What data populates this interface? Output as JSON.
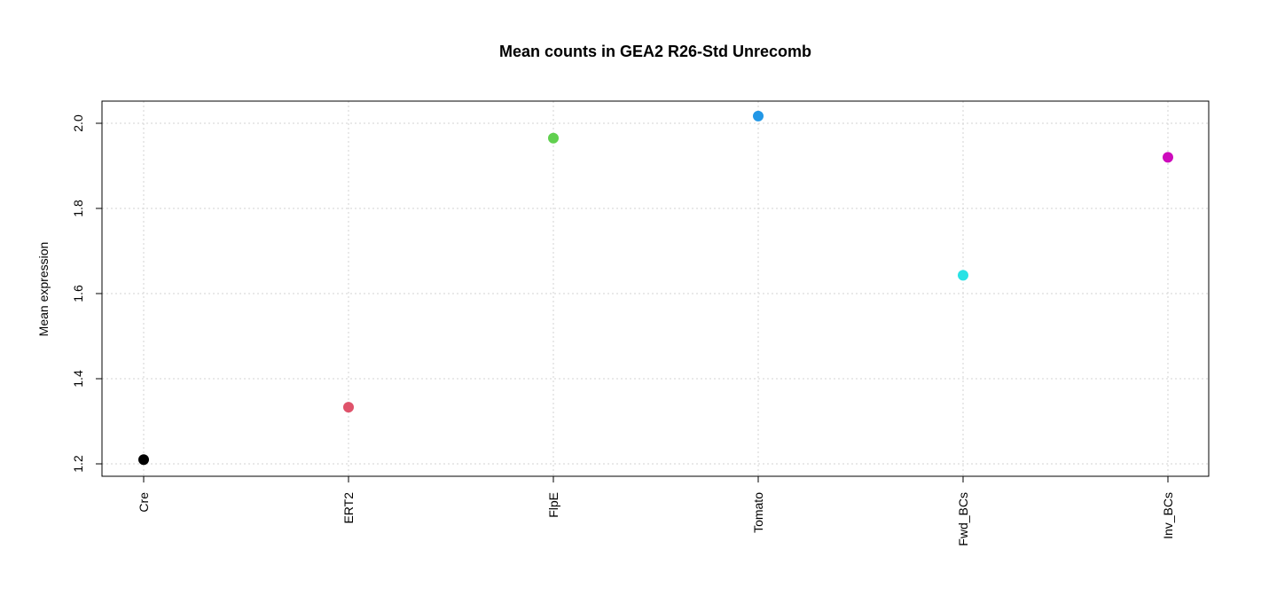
{
  "chart_data": {
    "type": "scatter",
    "title": "Mean counts in GEA2 R26-Std Unrecomb",
    "xlabel": "",
    "ylabel": "Mean expression",
    "categories": [
      "Cre",
      "ERT2",
      "FlpE",
      "Tomato",
      "Fwd_BCs",
      "Inv_BCs"
    ],
    "values": [
      1.21,
      1.333,
      1.965,
      2.017,
      1.643,
      1.92
    ],
    "colors": [
      "#000000",
      "#DF536B",
      "#61D04F",
      "#2297E6",
      "#28E2E5",
      "#CD0BBC"
    ],
    "ylim": [
      1.2,
      2.0
    ],
    "yticks": [
      1.2,
      1.4,
      1.6,
      1.8,
      2.0
    ],
    "ytick_labels": [
      "1.2",
      "1.4",
      "1.6",
      "1.8",
      "2.0"
    ],
    "grid": true,
    "legend": "none"
  }
}
